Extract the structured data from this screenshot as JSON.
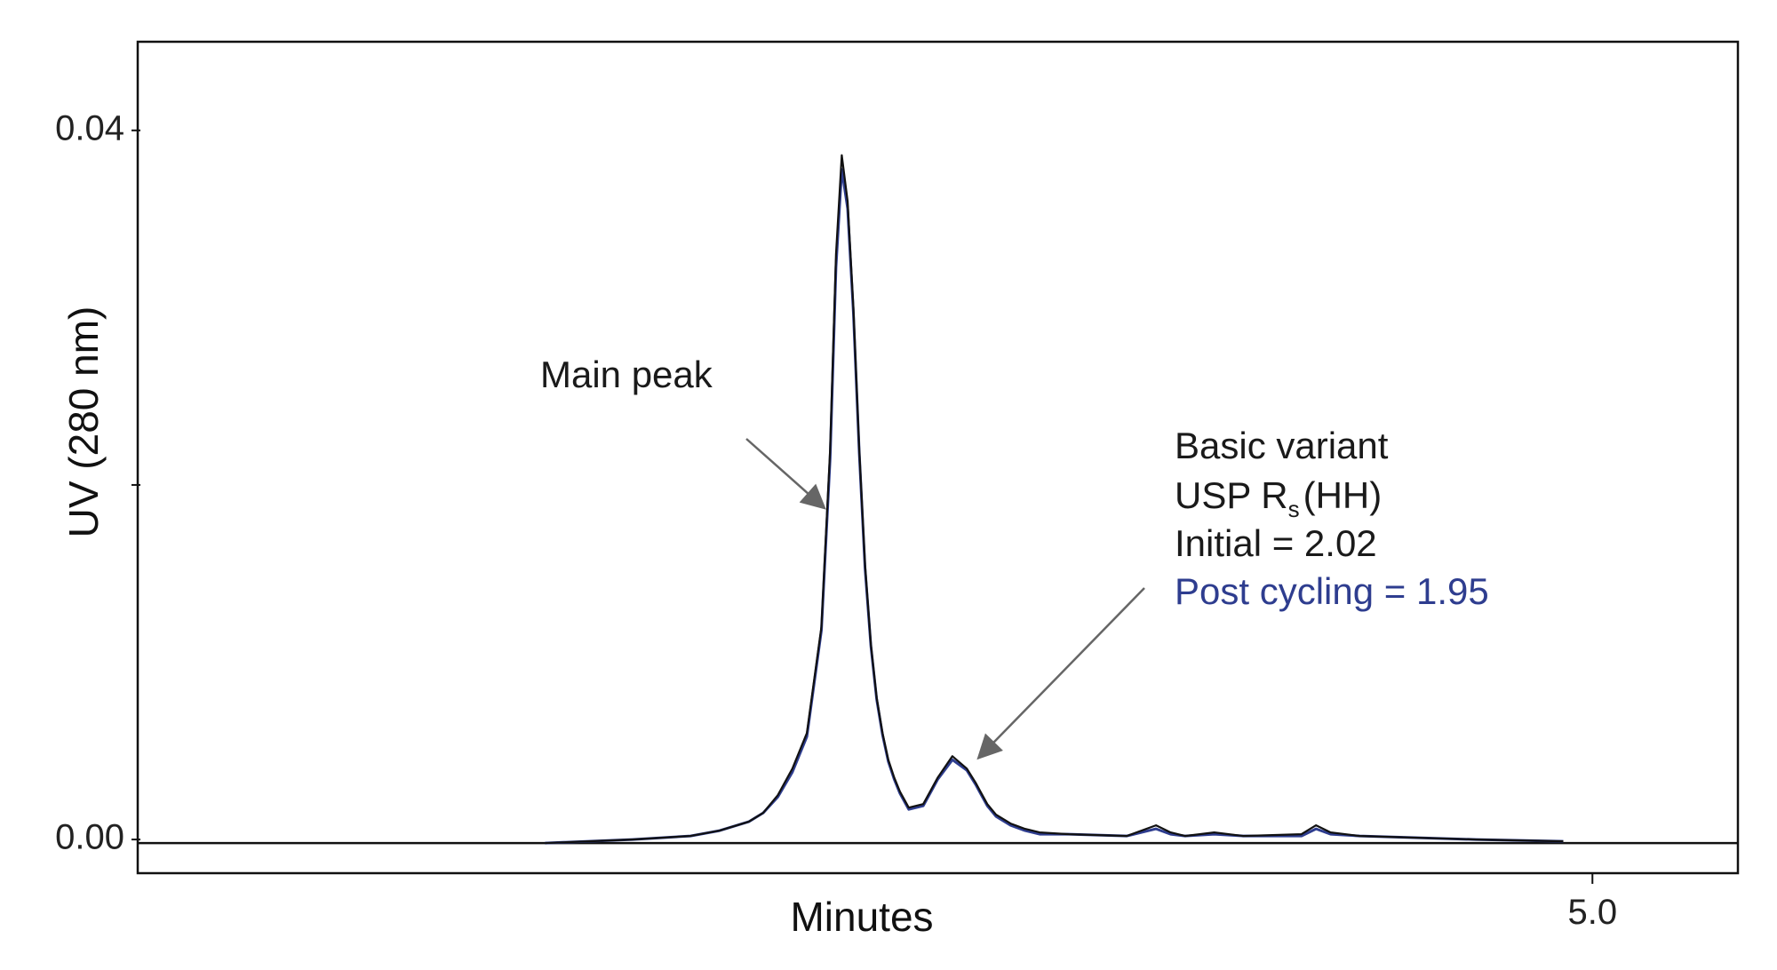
{
  "chart_data": {
    "type": "line",
    "title": "",
    "xlabel": "Minutes",
    "ylabel": "UV (280 nm)",
    "xlim": [
      0.0,
      5.5
    ],
    "ylim": [
      -0.0019,
      0.045
    ],
    "x_ticks": [
      {
        "value": 5.0,
        "label": "5.0"
      }
    ],
    "y_ticks": [
      {
        "value": 0.0,
        "label": "0.00"
      },
      {
        "value": 0.02,
        "label": ""
      },
      {
        "value": 0.04,
        "label": "0.04"
      }
    ],
    "baseline": -0.0002,
    "colors": {
      "initial": "#111111",
      "post_cycling": "#2e3d8f",
      "arrow": "#666666",
      "axis": "#111111"
    },
    "series": [
      {
        "name": "Initial",
        "color": "#111111",
        "x": [
          1.4,
          1.7,
          1.9,
          2.0,
          2.1,
          2.15,
          2.2,
          2.25,
          2.3,
          2.35,
          2.38,
          2.4,
          2.42,
          2.44,
          2.46,
          2.48,
          2.5,
          2.52,
          2.54,
          2.56,
          2.58,
          2.6,
          2.62,
          2.65,
          2.7,
          2.75,
          2.8,
          2.85,
          2.88,
          2.9,
          2.92,
          2.95,
          3.0,
          3.05,
          3.1,
          3.2,
          3.4,
          3.5,
          3.55,
          3.6,
          3.7,
          3.8,
          4.0,
          4.05,
          4.1,
          4.2,
          4.4,
          4.6,
          4.9
        ],
        "y": [
          -0.0002,
          0.0,
          0.0002,
          0.0005,
          0.001,
          0.0015,
          0.0025,
          0.004,
          0.006,
          0.012,
          0.022,
          0.033,
          0.0386,
          0.036,
          0.03,
          0.022,
          0.0155,
          0.011,
          0.008,
          0.006,
          0.0045,
          0.0035,
          0.0027,
          0.0018,
          0.002,
          0.0035,
          0.0047,
          0.004,
          0.0032,
          0.0026,
          0.002,
          0.0014,
          0.0009,
          0.0006,
          0.0004,
          0.0003,
          0.0002,
          0.0008,
          0.0004,
          0.0002,
          0.0004,
          0.0002,
          0.0003,
          0.0008,
          0.0004,
          0.0002,
          0.0001,
          0.0,
          -0.0001
        ]
      },
      {
        "name": "Post cycling",
        "color": "#2e3d8f",
        "x": [
          1.4,
          1.7,
          1.9,
          2.0,
          2.1,
          2.15,
          2.2,
          2.25,
          2.3,
          2.35,
          2.38,
          2.4,
          2.42,
          2.44,
          2.46,
          2.48,
          2.5,
          2.52,
          2.54,
          2.56,
          2.58,
          2.6,
          2.62,
          2.65,
          2.7,
          2.75,
          2.8,
          2.85,
          2.88,
          2.9,
          2.92,
          2.95,
          3.0,
          3.05,
          3.1,
          3.2,
          3.4,
          3.5,
          3.55,
          3.6,
          3.7,
          3.8,
          4.0,
          4.05,
          4.1,
          4.2,
          4.4,
          4.6,
          4.9
        ],
        "y": [
          -0.0002,
          0.0,
          0.0002,
          0.0005,
          0.001,
          0.0015,
          0.0024,
          0.0038,
          0.0058,
          0.0118,
          0.0215,
          0.0323,
          0.0378,
          0.0356,
          0.0297,
          0.0218,
          0.0153,
          0.0109,
          0.0079,
          0.0059,
          0.0044,
          0.0034,
          0.0026,
          0.0017,
          0.0019,
          0.0034,
          0.0045,
          0.0039,
          0.0031,
          0.0025,
          0.0019,
          0.0013,
          0.0008,
          0.0005,
          0.0003,
          0.0003,
          0.0002,
          0.0006,
          0.0003,
          0.0002,
          0.0003,
          0.0002,
          0.0002,
          0.0006,
          0.0003,
          0.0002,
          0.0001,
          0.0,
          -0.0001
        ]
      }
    ],
    "annotations": [
      {
        "lines": [
          "Main peak"
        ],
        "arrow_to": {
          "x": 2.36,
          "y": 0.0187
        }
      },
      {
        "lines": [
          "Basic variant",
          "USP R",
          "s",
          "(HH)",
          "Initial = 2.02",
          "Post cycling = 1.95"
        ],
        "arrow_to": {
          "x": 2.89,
          "y": 0.0046
        }
      }
    ]
  }
}
